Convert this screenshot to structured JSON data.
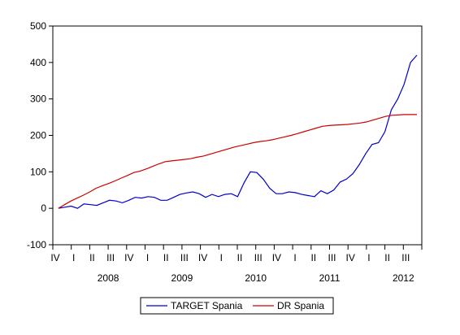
{
  "chart_data": {
    "type": "line",
    "title": "",
    "xlabel": "",
    "ylabel": "",
    "ylim": [
      -100,
      500
    ],
    "y_ticks": [
      -100,
      0,
      100,
      200,
      300,
      400,
      500
    ],
    "x_start": "2007-10",
    "x_end": "2012-09",
    "quarter_ticks": [
      "IV",
      "I",
      "II",
      "III",
      "IV",
      "I",
      "II",
      "III",
      "IV",
      "I",
      "II",
      "III",
      "IV",
      "I",
      "II",
      "III",
      "IV",
      "I",
      "II",
      "III"
    ],
    "years": [
      "2008",
      "2009",
      "2010",
      "2011",
      "2012"
    ],
    "legend": {
      "placement": "bottom-center",
      "entries": [
        "TARGET Spania",
        "DR Spania"
      ]
    },
    "series": [
      {
        "name": "TARGET Spania",
        "color": "#0000cc",
        "values": [
          0,
          3,
          6,
          0,
          12,
          10,
          8,
          15,
          22,
          20,
          15,
          22,
          30,
          28,
          32,
          30,
          22,
          22,
          30,
          38,
          42,
          45,
          40,
          30,
          38,
          32,
          38,
          40,
          32,
          70,
          100,
          98,
          80,
          55,
          40,
          40,
          45,
          43,
          38,
          35,
          32,
          48,
          40,
          50,
          72,
          80,
          95,
          120,
          150,
          175,
          180,
          210,
          270,
          300,
          340,
          400,
          420
        ]
      },
      {
        "name": "DR Spania",
        "color": "#cc0000",
        "values": [
          0,
          10,
          20,
          28,
          36,
          45,
          55,
          62,
          68,
          75,
          83,
          90,
          98,
          102,
          108,
          115,
          122,
          128,
          130,
          132,
          134,
          136,
          140,
          143,
          148,
          153,
          158,
          163,
          168,
          172,
          176,
          180,
          183,
          185,
          188,
          192,
          196,
          200,
          205,
          210,
          215,
          220,
          225,
          227,
          228,
          229,
          230,
          232,
          234,
          237,
          242,
          247,
          252,
          255,
          256,
          257,
          257,
          257
        ]
      }
    ]
  }
}
